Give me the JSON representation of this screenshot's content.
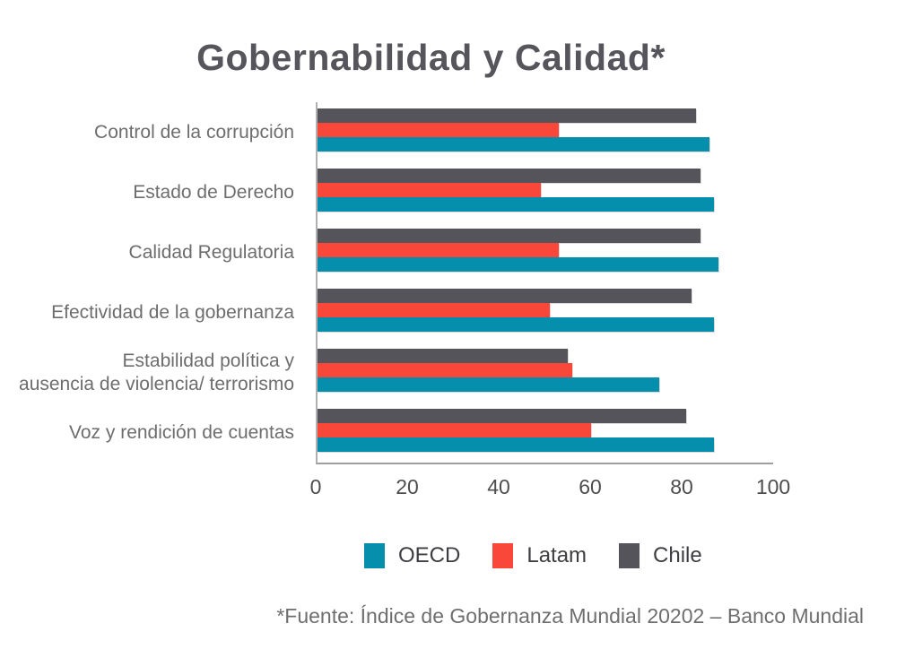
{
  "title": "Gobernabilidad y Calidad*",
  "footnote": "*Fuente: Índice de Gobernanza Mundial 20202 – Banco Mundial",
  "colors": {
    "oecd": "#058FAC",
    "latam": "#F9483A",
    "chile": "#55545A",
    "title_text": "#56555B",
    "category_text": "#6D6D6D",
    "axis_line": "#A8A8A8"
  },
  "chart_data": {
    "type": "bar",
    "orientation": "horizontal",
    "title": "Gobernabilidad y Calidad*",
    "categories": [
      "Control de la corrupción",
      "Estado de Derecho",
      "Calidad Regulatoria",
      "Efectividad de la gobernanza",
      "Estabilidad política y ausencia de violencia/ terrorismo",
      "Voz y rendición de cuentas"
    ],
    "categories_display": [
      [
        "Control de la corrupción"
      ],
      [
        "Estado de Derecho"
      ],
      [
        "Calidad Regulatoria"
      ],
      [
        "Efectividad de la gobernanza"
      ],
      [
        "Estabilidad política y",
        "ausencia de violencia/ terrorismo"
      ],
      [
        "Voz y rendición de cuentas"
      ]
    ],
    "series": [
      {
        "name": "OECD",
        "color": "#058FAC",
        "values": [
          86,
          87,
          88,
          87,
          75,
          87
        ]
      },
      {
        "name": "Latam",
        "color": "#F9483A",
        "values": [
          53,
          49,
          53,
          51,
          56,
          60
        ]
      },
      {
        "name": "Chile",
        "color": "#55545A",
        "values": [
          83,
          84,
          84,
          82,
          55,
          81
        ]
      }
    ],
    "bar_order_top_to_bottom": [
      "Chile",
      "Latam",
      "OECD"
    ],
    "xlim": [
      0,
      100
    ],
    "xticks": [
      0,
      20,
      40,
      60,
      80,
      100
    ],
    "grid": false,
    "legend_position": "bottom",
    "ylabel": "",
    "xlabel": ""
  },
  "legend": {
    "items": [
      {
        "label": "OECD",
        "color": "#058FAC"
      },
      {
        "label": "Latam",
        "color": "#F9483A"
      },
      {
        "label": "Chile",
        "color": "#55545A"
      }
    ]
  }
}
